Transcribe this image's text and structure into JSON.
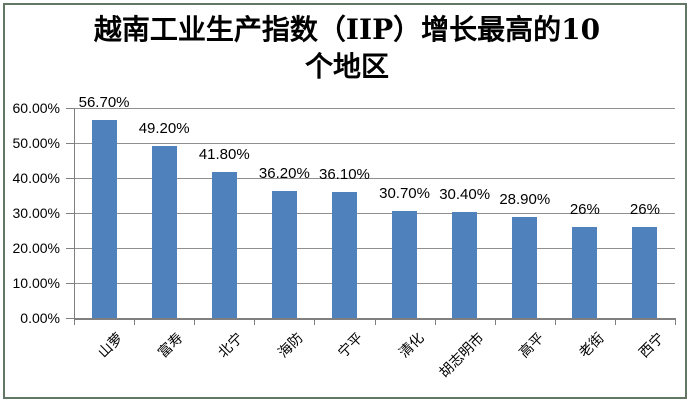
{
  "title_lines": [
    "越南工业生产指数（IIP）增长最高的10",
    "个地区"
  ],
  "colors": {
    "bar": "#4F81BD",
    "gridline": "#909090",
    "axis": "#7F7F7F",
    "frame": "#617663",
    "text": "#000000"
  },
  "chart_data": {
    "type": "bar",
    "title": "越南工业生产指数（IIP）增长最高的10个地区",
    "categories": [
      "山萝",
      "富寿",
      "北宁",
      "海防",
      "宁平",
      "清化",
      "胡志明市",
      "高平",
      "老街",
      "西宁"
    ],
    "values": [
      56.7,
      49.2,
      41.8,
      36.2,
      36.1,
      30.7,
      30.4,
      28.9,
      26,
      26
    ],
    "data_labels": [
      "56.70%",
      "49.20%",
      "41.80%",
      "36.20%",
      "36.10%",
      "30.70%",
      "30.40%",
      "28.90%",
      "26%",
      "26%"
    ],
    "xlabel": "",
    "ylabel": "",
    "ylim": [
      0,
      60
    ],
    "ytick_step": 10,
    "ytick_labels": [
      "0.00%",
      "10.00%",
      "20.00%",
      "30.00%",
      "40.00%",
      "50.00%",
      "60.00%"
    ],
    "grid": true,
    "legend": false,
    "bar_color": "#4F81BD"
  }
}
